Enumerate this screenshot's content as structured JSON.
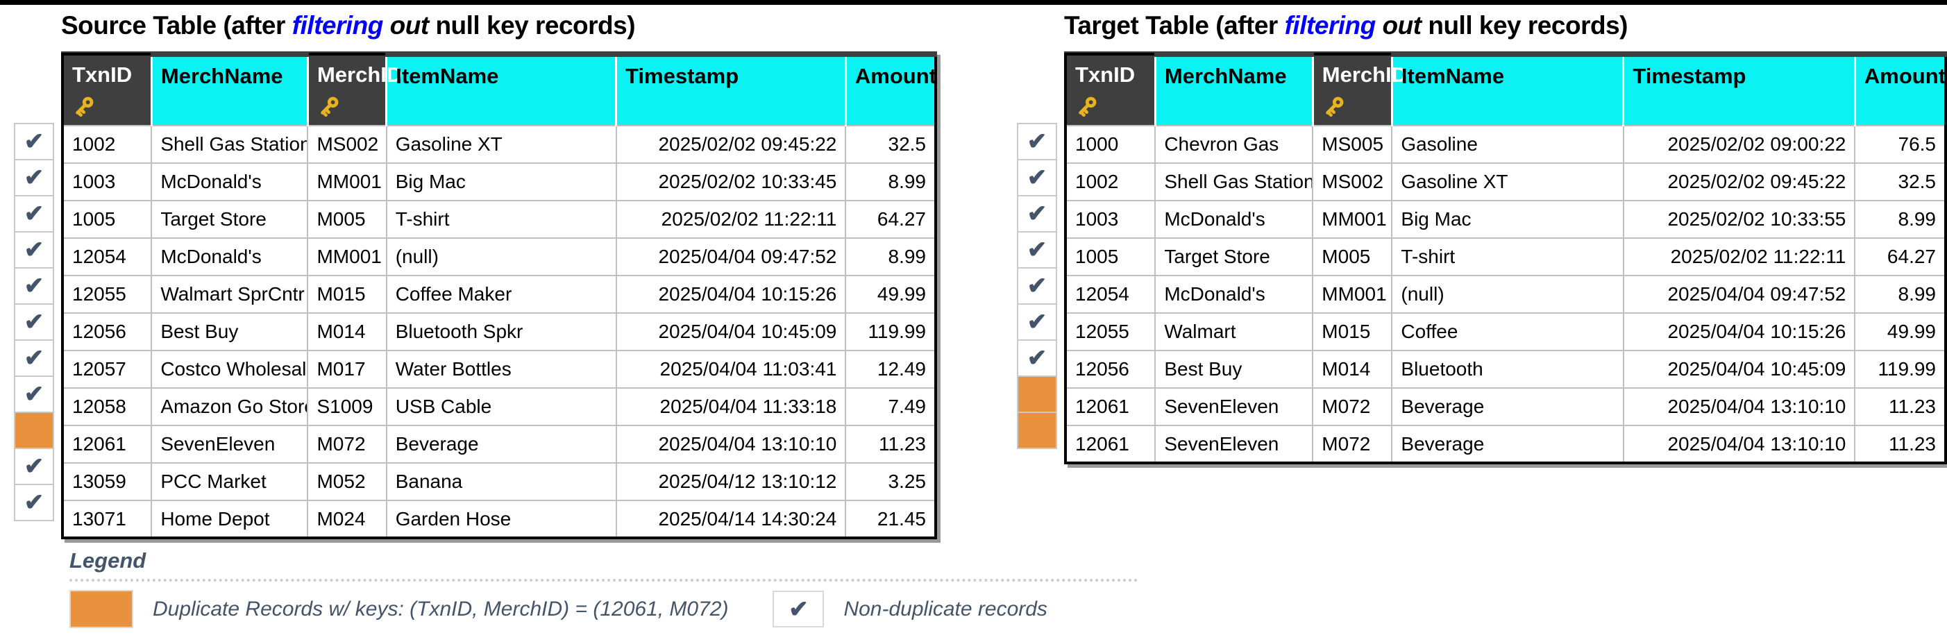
{
  "icons": {
    "key": "key-icon",
    "check": "✔"
  },
  "colors": {
    "header_key_bg": "#3F3F3F",
    "header_plain_bg": "#0BF2F2",
    "duplicate_orange": "#E8923E",
    "check_slate": "#44546A",
    "title_highlight_blue": "#0000FF"
  },
  "columns": [
    {
      "label": "TxnID",
      "is_key": true
    },
    {
      "label": "MerchName",
      "is_key": false
    },
    {
      "label": "MerchID",
      "is_key": true
    },
    {
      "label": "ItemName",
      "is_key": false
    },
    {
      "label": "Timestamp",
      "is_key": false
    },
    {
      "label": "Amount",
      "is_key": false
    }
  ],
  "source_table": {
    "title": {
      "pre": "Source Table (after ",
      "filtering": "filtering",
      "out": " out",
      "post": " null key records)"
    },
    "rows": [
      {
        "status": "check",
        "cells": [
          "1002",
          "Shell Gas Station",
          "MS002",
          "Gasoline XT",
          "2025/02/02 09:45:22",
          "32.5"
        ]
      },
      {
        "status": "check",
        "cells": [
          "1003",
          "McDonald's",
          "MM001",
          "Big Mac",
          "2025/02/02 10:33:45",
          "8.99"
        ]
      },
      {
        "status": "check",
        "cells": [
          "1005",
          "Target Store",
          "M005",
          "T-shirt",
          "2025/02/02 11:22:11",
          "64.27"
        ]
      },
      {
        "status": "check",
        "cells": [
          "12054",
          "McDonald's",
          "MM001",
          "(null)",
          "2025/04/04 09:47:52",
          "8.99"
        ]
      },
      {
        "status": "check",
        "cells": [
          "12055",
          "Walmart SprCntr",
          "M015",
          "Coffee Maker",
          "2025/04/04 10:15:26",
          "49.99"
        ]
      },
      {
        "status": "check",
        "cells": [
          "12056",
          "Best Buy",
          "M014",
          "Bluetooth Spkr",
          "2025/04/04 10:45:09",
          "119.99"
        ]
      },
      {
        "status": "check",
        "cells": [
          "12057",
          "Costco Wholesale",
          "M017",
          "Water Bottles",
          "2025/04/04 11:03:41",
          "12.49"
        ]
      },
      {
        "status": "check",
        "cells": [
          "12058",
          "Amazon Go Store",
          "S1009",
          "USB Cable",
          "2025/04/04 11:33:18",
          "7.49"
        ]
      },
      {
        "status": "duplicate",
        "cells": [
          "12061",
          "SevenEleven",
          "M072",
          "Beverage",
          "2025/04/04 13:10:10",
          "11.23"
        ]
      },
      {
        "status": "check",
        "cells": [
          "13059",
          "PCC Market",
          "M052",
          "Banana",
          "2025/04/12 13:10:12",
          "3.25"
        ]
      },
      {
        "status": "check",
        "cells": [
          "13071",
          "Home Depot",
          "M024",
          "Garden Hose",
          "2025/04/14 14:30:24",
          "21.45"
        ]
      }
    ]
  },
  "target_table": {
    "title": {
      "pre": "Target Table (after ",
      "filtering": "filtering",
      "out": " out",
      "post": " null key records)"
    },
    "rows": [
      {
        "status": "check",
        "cells": [
          "1000",
          "Chevron Gas",
          "MS005",
          "Gasoline",
          "2025/02/02 09:00:22",
          "76.5"
        ]
      },
      {
        "status": "check",
        "cells": [
          "1002",
          "Shell Gas Station",
          "MS002",
          "Gasoline XT",
          "2025/02/02 09:45:22",
          "32.5"
        ]
      },
      {
        "status": "check",
        "cells": [
          "1003",
          "McDonald's",
          "MM001",
          "Big Mac",
          "2025/02/02 10:33:55",
          "8.99"
        ]
      },
      {
        "status": "check",
        "cells": [
          "1005",
          "Target Store",
          "M005",
          "T-shirt",
          "2025/02/02 11:22:11",
          "64.27"
        ]
      },
      {
        "status": "check",
        "cells": [
          "12054",
          "McDonald's",
          "MM001",
          "(null)",
          "2025/04/04 09:47:52",
          "8.99"
        ]
      },
      {
        "status": "check",
        "cells": [
          "12055",
          "Walmart",
          "M015",
          "Coffee",
          "2025/04/04 10:15:26",
          "49.99"
        ]
      },
      {
        "status": "check",
        "cells": [
          "12056",
          "Best Buy",
          "M014",
          "Bluetooth",
          "2025/04/04 10:45:09",
          "119.99"
        ]
      },
      {
        "status": "duplicate",
        "cells": [
          "12061",
          "SevenEleven",
          "M072",
          "Beverage",
          "2025/04/04 13:10:10",
          "11.23"
        ]
      },
      {
        "status": "duplicate",
        "cells": [
          "12061",
          "SevenEleven",
          "M072",
          "Beverage",
          "2025/04/04 13:10:10",
          "11.23"
        ]
      }
    ]
  },
  "legend": {
    "title": "Legend",
    "duplicate_label": "Duplicate Records w/ keys: (TxnID, MerchID) =  (12061, M072)",
    "non_duplicate_label": "Non-duplicate records"
  }
}
